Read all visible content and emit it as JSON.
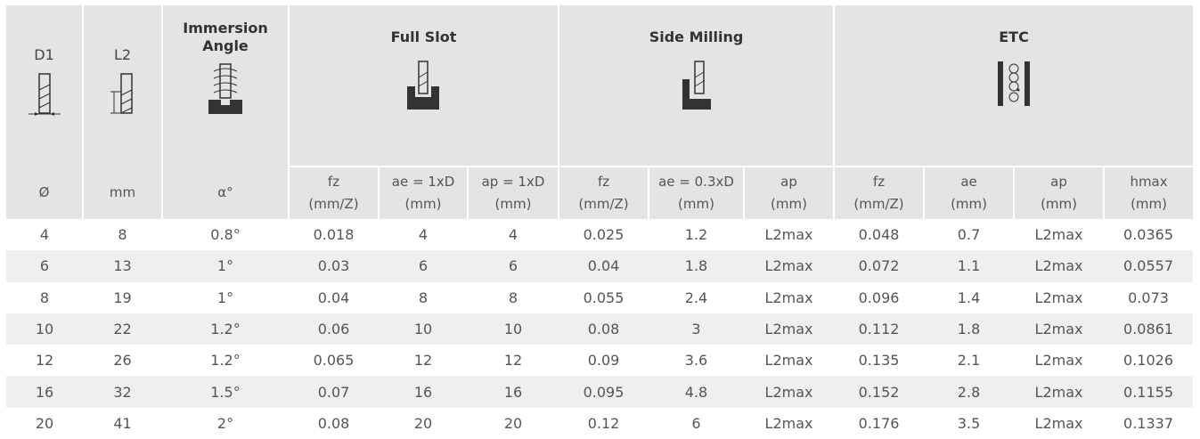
{
  "header": {
    "d1": "D1",
    "l2": "L2",
    "immersion_angle": "Immersion Angle",
    "full_slot": "Full Slot",
    "side_milling": "Side Milling",
    "etc": "ETC",
    "units": {
      "d1": "Ø",
      "l2": "mm",
      "angle": "α°"
    },
    "sub": [
      "fz",
      "(mm/Z)",
      "ae = 1xD",
      "(mm)",
      "ap = 1xD",
      "(mm)",
      "fz",
      "(mm/Z)",
      "ae = 0.3xD",
      "(mm)",
      "ap",
      "(mm)",
      "fz",
      "(mm/Z)",
      "ae",
      "(mm)",
      "ap",
      "(mm)",
      "hmax",
      "(mm)"
    ]
  },
  "rows": [
    [
      "4",
      "8",
      "0.8°",
      "0.018",
      "4",
      "4",
      "0.025",
      "1.2",
      "L2max",
      "0.048",
      "0.7",
      "L2max",
      "0.0365"
    ],
    [
      "6",
      "13",
      "1°",
      "0.03",
      "6",
      "6",
      "0.04",
      "1.8",
      "L2max",
      "0.072",
      "1.1",
      "L2max",
      "0.0557"
    ],
    [
      "8",
      "19",
      "1°",
      "0.04",
      "8",
      "8",
      "0.055",
      "2.4",
      "L2max",
      "0.096",
      "1.4",
      "L2max",
      "0.073"
    ],
    [
      "10",
      "22",
      "1.2°",
      "0.06",
      "10",
      "10",
      "0.08",
      "3",
      "L2max",
      "0.112",
      "1.8",
      "L2max",
      "0.0861"
    ],
    [
      "12",
      "26",
      "1.2°",
      "0.065",
      "12",
      "12",
      "0.09",
      "3.6",
      "L2max",
      "0.135",
      "2.1",
      "L2max",
      "0.1026"
    ],
    [
      "16",
      "32",
      "1.5°",
      "0.07",
      "16",
      "16",
      "0.095",
      "4.8",
      "L2max",
      "0.152",
      "2.8",
      "L2max",
      "0.1155"
    ],
    [
      "20",
      "41",
      "2°",
      "0.08",
      "20",
      "20",
      "0.12",
      "6",
      "L2max",
      "0.176",
      "3.5",
      "L2max",
      "0.1337"
    ]
  ]
}
